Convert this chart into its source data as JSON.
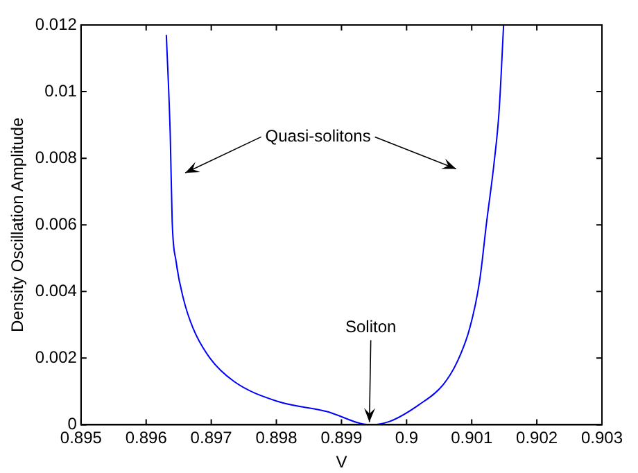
{
  "chart_data": {
    "type": "line",
    "xlabel": "V",
    "ylabel": "Density Oscillation Amplitude",
    "x": [
      0.89631,
      0.89637,
      0.8964,
      0.89646,
      0.89657,
      0.89672,
      0.89698,
      0.89735,
      0.89802,
      0.89877,
      0.89944,
      0.89974,
      0.90019,
      0.90056,
      0.90078,
      0.90097,
      0.90112,
      0.90123,
      0.90134,
      0.90142,
      0.90149
    ],
    "series": [
      {
        "color": "#0000ff",
        "values": [
          0.0117,
          0.0087,
          0.0061,
          0.0049,
          0.0038,
          0.0029,
          0.002,
          0.0013,
          0.0007,
          0.0004,
          0.0,
          0.0001,
          0.0006,
          0.0012,
          0.0019,
          0.0029,
          0.0043,
          0.0061,
          0.0078,
          0.0094,
          0.012
        ]
      }
    ],
    "xlim": [
      0.895,
      0.903
    ],
    "xticks": [
      0.895,
      0.896,
      0.897,
      0.898,
      0.899,
      0.9,
      0.901,
      0.902,
      0.903
    ],
    "ylim": [
      0,
      0.012
    ],
    "yticks": [
      0,
      0.002,
      0.004,
      0.006,
      0.008,
      0.01,
      0.012
    ],
    "grid": false,
    "legend": false,
    "marker": "none",
    "line_style": "solid",
    "annotations": [
      "Quasi-solitons",
      {
        "text": "Soliton",
        "x": 0.89945,
        "y": 0
      }
    ]
  }
}
